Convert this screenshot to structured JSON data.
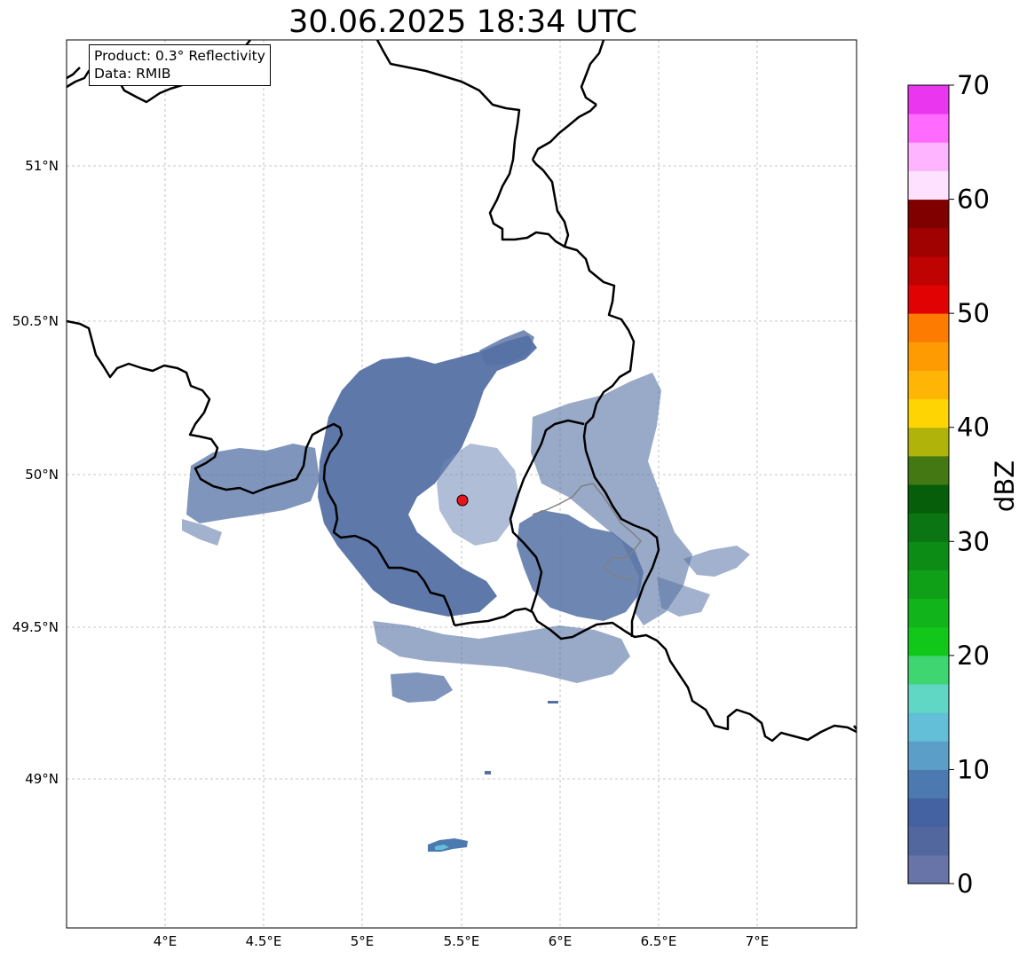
{
  "title": "30.06.2025 18:34 UTC",
  "info": {
    "product": "Product: 0.3° Reflectivity",
    "data_source": "Data: RMIB"
  },
  "map": {
    "lon_range": [
      3.5,
      7.5
    ],
    "lat_range": [
      48.55,
      51.4
    ],
    "lon_ticks": [
      "4°E",
      "4.5°E",
      "5°E",
      "5.5°E",
      "6°E",
      "6.5°E",
      "7°E"
    ],
    "lat_ticks": [
      "51°N",
      "50.5°N",
      "50°N",
      "49.5°N",
      "49°N"
    ],
    "radar_site_color": "#e8141b",
    "border_color": "#000000",
    "grid": true
  },
  "colorbar": {
    "label": "dBZ",
    "min": 0,
    "max": 70,
    "tick_labels": [
      "0",
      "10",
      "20",
      "30",
      "40",
      "50",
      "60",
      "70"
    ],
    "colors": [
      "#6873a8",
      "#51679e",
      "#4461a1",
      "#4c7ab0",
      "#5b9fc8",
      "#63bfd8",
      "#60d6c4",
      "#3fd671",
      "#10c71a",
      "#11b41a",
      "#10a018",
      "#0d8c15",
      "#0a7512",
      "#065e0b",
      "#447812",
      "#b0b30a",
      "#fed502",
      "#feb506",
      "#fe9b03",
      "#fe7b02",
      "#e10303",
      "#bf0202",
      "#a00101",
      "#800000",
      "#fee1fe",
      "#feb4fe",
      "#fe6bfe",
      "#ea36ee"
    ]
  },
  "echo_colors": {
    "main": "#5571a4",
    "light": "#6e86b4",
    "cell_blue": "#4c7ab0",
    "cell_cyan": "#63bfd8"
  }
}
